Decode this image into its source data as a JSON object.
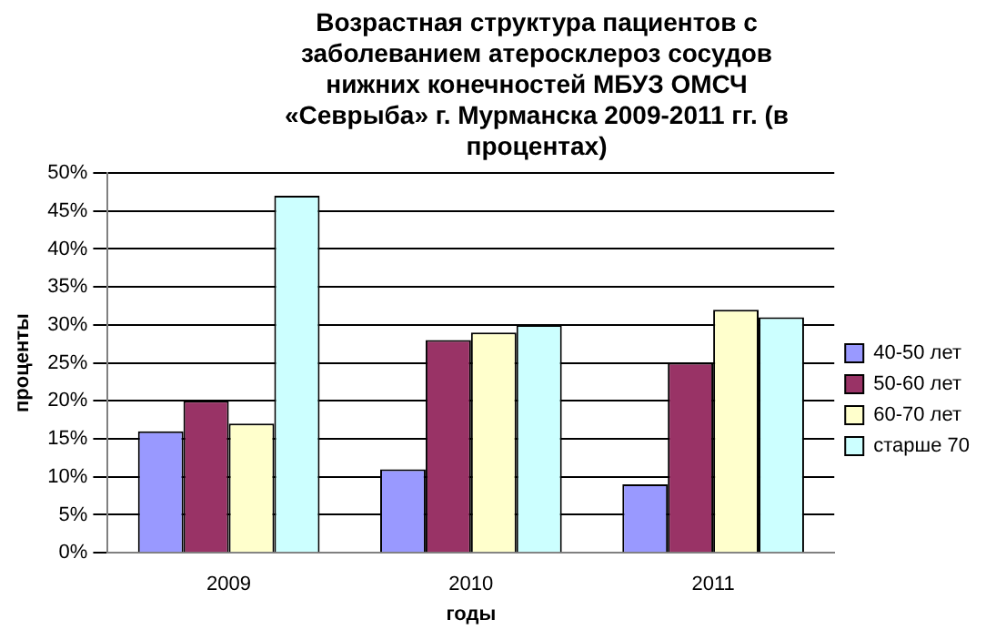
{
  "chart_data": {
    "type": "bar",
    "title": "Возрастная структура пациентов с заболеванием атеросклероз сосудов нижних конечностей МБУЗ ОМСЧ «Севрыба» г. Мурманска 2009-2011 гг. (в процентах)",
    "xlabel": "годы",
    "ylabel": "проценты",
    "categories": [
      "2009",
      "2010",
      "2011"
    ],
    "series": [
      {
        "name": "40-50 лет",
        "color": "#9999ff",
        "values": [
          16,
          11,
          9
        ]
      },
      {
        "name": "50-60 лет",
        "color": "#993366",
        "values": [
          20,
          28,
          25
        ]
      },
      {
        "name": "60-70 лет",
        "color": "#ffffcc",
        "values": [
          17,
          29,
          32
        ]
      },
      {
        "name": "старше 70",
        "color": "#ccffff",
        "values": [
          47,
          30,
          31
        ]
      }
    ],
    "ylim": [
      0,
      50
    ],
    "yticks": [
      {
        "value": 0,
        "label": "0%"
      },
      {
        "value": 5,
        "label": "5%"
      },
      {
        "value": 10,
        "label": "10%"
      },
      {
        "value": 15,
        "label": "15%"
      },
      {
        "value": 20,
        "label": "20%"
      },
      {
        "value": 25,
        "label": "25%"
      },
      {
        "value": 30,
        "label": "30%"
      },
      {
        "value": 35,
        "label": "35%"
      },
      {
        "value": 40,
        "label": "40%"
      },
      {
        "value": 45,
        "label": "45%"
      },
      {
        "value": 50,
        "label": "50%"
      }
    ],
    "grid": "y",
    "legend": "right"
  }
}
